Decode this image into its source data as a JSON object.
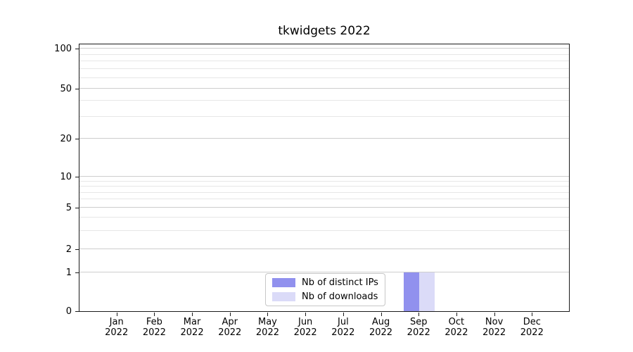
{
  "title": "tkwidgets 2022",
  "chart_data": {
    "type": "bar",
    "title": "tkwidgets 2022",
    "months": [
      "Jan",
      "Feb",
      "Mar",
      "Apr",
      "May",
      "Jun",
      "Jul",
      "Aug",
      "Sep",
      "Oct",
      "Nov",
      "Dec"
    ],
    "year": "2022",
    "series": [
      {
        "name": "Nb of distinct IPs",
        "color": "#9191ee",
        "values": [
          0,
          0,
          0,
          0,
          0,
          0,
          0,
          0,
          1,
          0,
          0,
          0
        ]
      },
      {
        "name": "Nb of downloads",
        "color": "#dbdbf8",
        "values": [
          0,
          0,
          0,
          0,
          0,
          0,
          0,
          0,
          1,
          0,
          0,
          0
        ]
      }
    ],
    "y_axis": {
      "scale": "symlog",
      "ticks": [
        0,
        1,
        2,
        5,
        10,
        20,
        50,
        100
      ],
      "minor_gridlines": [
        3,
        4,
        6,
        7,
        8,
        9,
        30,
        40,
        60,
        70,
        80,
        90
      ],
      "ylim": [
        0,
        100
      ]
    },
    "grid": "horizontal",
    "legend": {
      "position": "lower center",
      "entries": [
        "Nb of distinct IPs",
        "Nb of downloads"
      ]
    }
  }
}
